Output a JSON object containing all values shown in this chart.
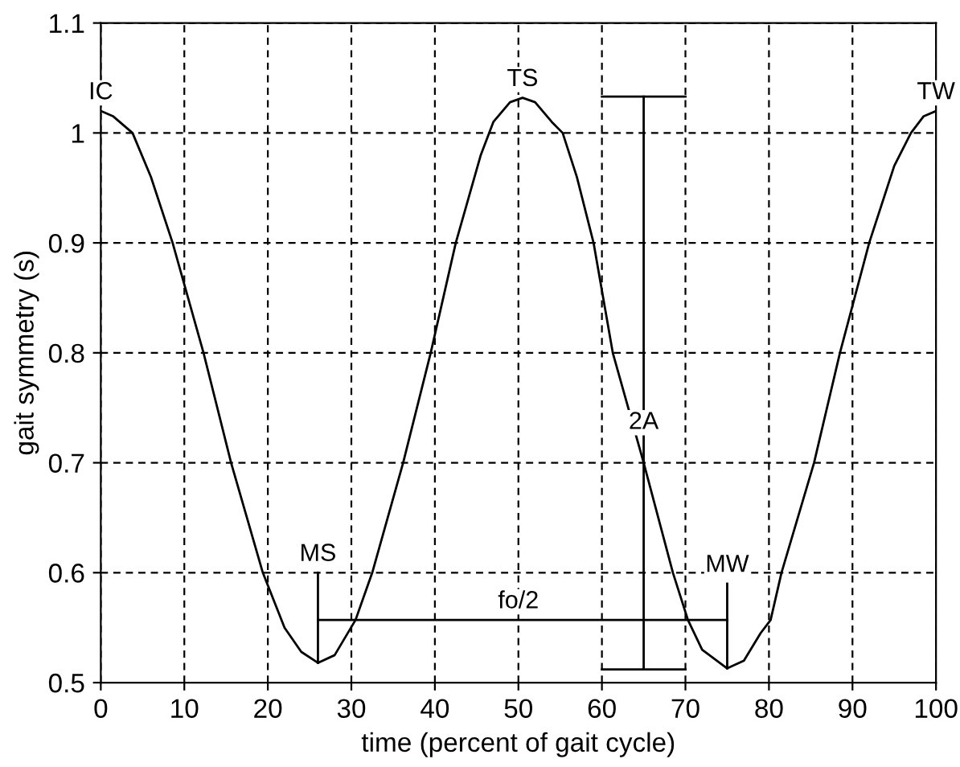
{
  "chart_data": {
    "type": "line",
    "xlabel": "time (percent of gait cycle)",
    "ylabel": "gait symmetry (s)",
    "xlim": [
      0,
      100
    ],
    "ylim": [
      0.5,
      1.1
    ],
    "xticks": [
      0,
      10,
      20,
      30,
      40,
      50,
      60,
      70,
      80,
      90,
      100
    ],
    "yticks": [
      0.5,
      0.6,
      0.7,
      0.8,
      0.9,
      1,
      1.1
    ],
    "grid": true,
    "marker": "none",
    "line_style": "solid",
    "series": [
      {
        "color": "#000000",
        "x": [
          0,
          1.5,
          3.8,
          6,
          8.6,
          12.3,
          15.6,
          19.4,
          22,
          24,
          26,
          28,
          30.5,
          32.5,
          36.2,
          39.5,
          42.5,
          45.5,
          47,
          49,
          50.5,
          52,
          54,
          55.3,
          57,
          59,
          61.3,
          65,
          68.5,
          70.3,
          72,
          75,
          77,
          79,
          80.2,
          81.5,
          85.4,
          88.5,
          92,
          95,
          97,
          98.5,
          100
        ],
        "values": [
          1.02,
          1.015,
          1.0,
          0.96,
          0.9,
          0.8,
          0.7,
          0.6,
          0.55,
          0.528,
          0.518,
          0.525,
          0.557,
          0.6,
          0.7,
          0.8,
          0.9,
          0.98,
          1.01,
          1.028,
          1.032,
          1.028,
          1.01,
          1.0,
          0.96,
          0.9,
          0.8,
          0.7,
          0.6,
          0.557,
          0.53,
          0.513,
          0.52,
          0.545,
          0.557,
          0.6,
          0.7,
          0.8,
          0.9,
          0.97,
          1.0,
          1.015,
          1.02
        ]
      },
      {
        "color": "#000000",
        "x": [
          60,
          70
        ],
        "values": [
          1.033,
          1.033
        ]
      },
      {
        "color": "#000000",
        "x": [
          65,
          65
        ],
        "values": [
          0.512,
          1.033
        ]
      },
      {
        "color": "#000000",
        "x": [
          60,
          70
        ],
        "values": [
          0.512,
          0.512
        ]
      },
      {
        "color": "#000000",
        "x": [
          26,
          75
        ],
        "values": [
          0.557,
          0.557
        ]
      },
      {
        "color": "#000000",
        "x": [
          26,
          26
        ],
        "values": [
          0.518,
          0.6
        ]
      },
      {
        "color": "#000000",
        "x": [
          75,
          75
        ],
        "values": [
          0.513,
          0.59
        ]
      }
    ],
    "annotations": [
      {
        "text": "IC",
        "x": 0,
        "y": 1.02
      },
      {
        "text": "TS",
        "x": 50.5,
        "y": 1.032
      },
      {
        "text": "TW",
        "x": 100,
        "y": 1.02
      },
      {
        "text": "MS",
        "x": 26,
        "y": 0.6
      },
      {
        "text": "MW",
        "x": 75,
        "y": 0.59
      },
      {
        "text": "fo/2",
        "x": 50,
        "y": 0.557
      },
      {
        "text": "2A",
        "x": 65,
        "y": 0.72
      }
    ]
  }
}
